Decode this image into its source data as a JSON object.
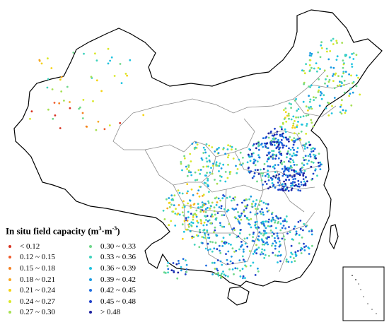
{
  "legend": {
    "title_main": "In situ field capacity (m",
    "title_sup1": "3",
    "title_mid": "·m",
    "title_sup2": "-3",
    "title_end": ")",
    "items": [
      {
        "label": "< 0.12",
        "color": "#d7301f"
      },
      {
        "label": "0.12 ~ 0.15",
        "color": "#f0592a"
      },
      {
        "label": "0.15 ~ 0.18",
        "color": "#f57f20"
      },
      {
        "label": "0.18 ~ 0.21",
        "color": "#f7a823"
      },
      {
        "label": "0.21 ~ 0.24",
        "color": "#f5d313"
      },
      {
        "label": "0.24 ~ 0.27",
        "color": "#d9e82a"
      },
      {
        "label": "0.27 ~ 0.30",
        "color": "#a6e052"
      },
      {
        "label": "0.30 ~ 0.33",
        "color": "#6fd88b"
      },
      {
        "label": "0.33 ~ 0.36",
        "color": "#3fd3bd"
      },
      {
        "label": "0.36 ~ 0.39",
        "color": "#1ec3e0"
      },
      {
        "label": "0.39 ~ 0.42",
        "color": "#1a9be3"
      },
      {
        "label": "0.42 ~ 0.45",
        "color": "#1f6de0"
      },
      {
        "label": "0.45 ~ 0.48",
        "color": "#2040c8"
      },
      {
        "label": "> 0.48",
        "color": "#1a1f9e"
      }
    ]
  },
  "map": {
    "boundary_color": "#000000",
    "province_color": "#8c8c8c"
  }
}
